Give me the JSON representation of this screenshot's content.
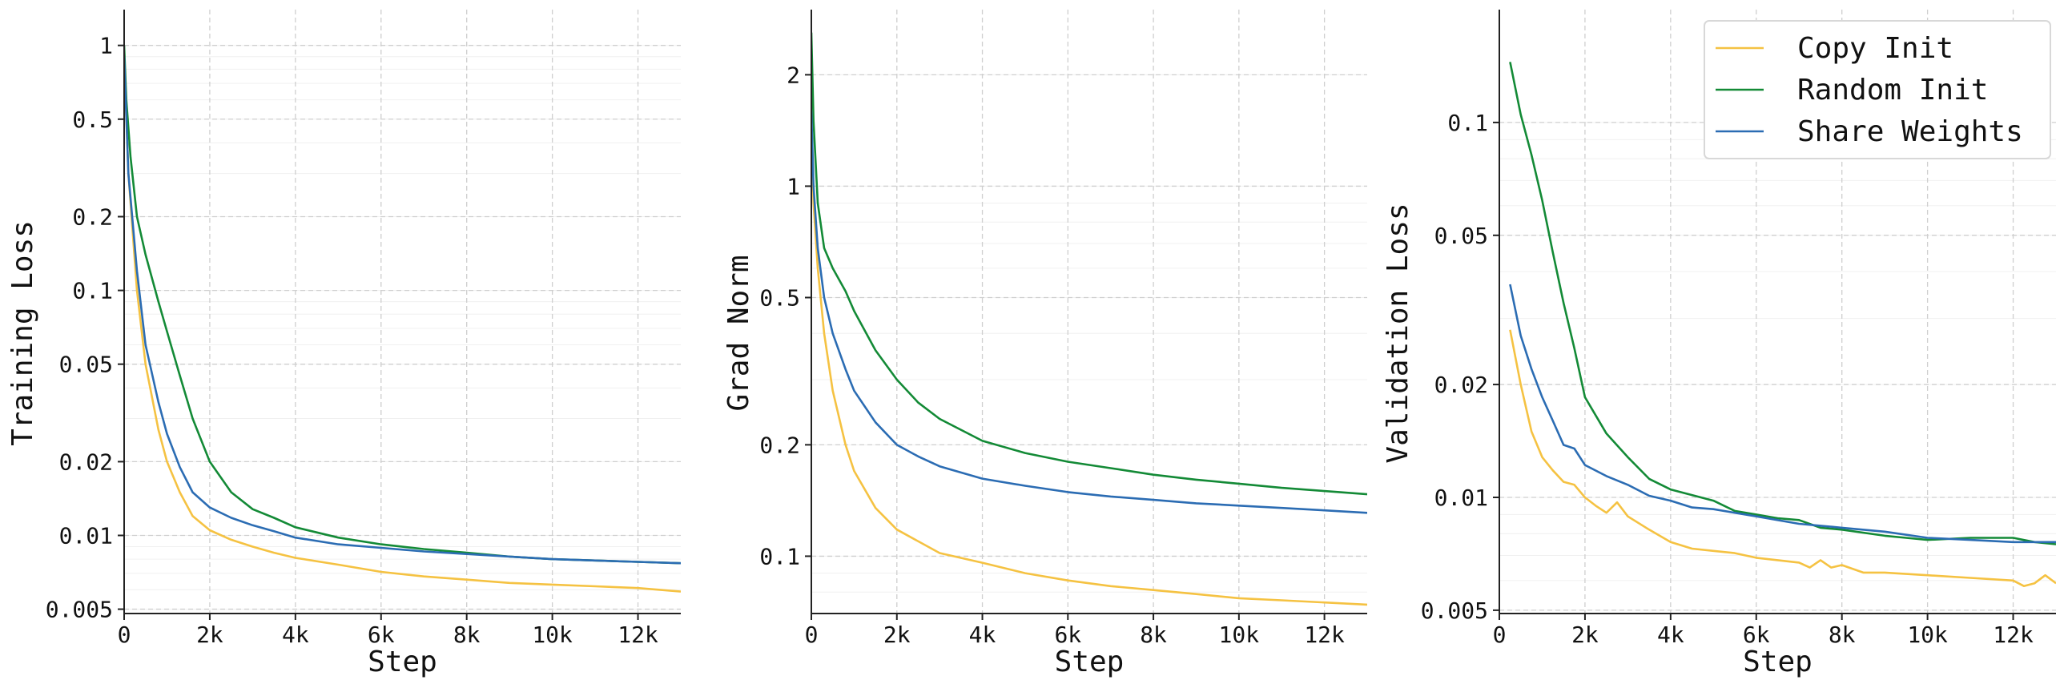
{
  "chart_data": [
    {
      "type": "line",
      "xlabel": "Step",
      "ylabel": "Training Loss",
      "yscale": "log",
      "xlim": [
        0,
        13000
      ],
      "ylim": [
        0.0048,
        1.4
      ],
      "x_ticks": [
        0,
        2000,
        4000,
        6000,
        8000,
        10000,
        12000
      ],
      "x_tick_labels": [
        "0",
        "2k",
        "4k",
        "6k",
        "8k",
        "10k",
        "12k"
      ],
      "y_ticks": [
        0.005,
        0.01,
        0.02,
        0.05,
        0.1,
        0.2,
        0.5,
        1
      ],
      "y_tick_labels": [
        "0.005",
        "0.01",
        "0.02",
        "0.05",
        "0.1",
        "0.2",
        "0.5",
        "1"
      ],
      "grid": true,
      "series": [
        {
          "name": "Copy Init",
          "color": "#f5c242",
          "x": [
            0,
            100,
            300,
            500,
            800,
            1000,
            1300,
            1600,
            2000,
            2500,
            3000,
            3500,
            4000,
            5000,
            6000,
            7000,
            8000,
            9000,
            10000,
            11000,
            12000,
            13000
          ],
          "y": [
            0.9,
            0.3,
            0.1,
            0.05,
            0.027,
            0.02,
            0.015,
            0.012,
            0.0105,
            0.0096,
            0.009,
            0.0085,
            0.0081,
            0.0076,
            0.0071,
            0.0068,
            0.0066,
            0.0064,
            0.0063,
            0.0062,
            0.0061,
            0.0059
          ]
        },
        {
          "name": "Random Init",
          "color": "#138a36",
          "x": [
            0,
            50,
            150,
            300,
            500,
            800,
            1000,
            1300,
            1600,
            2000,
            2500,
            3000,
            3500,
            4000,
            5000,
            6000,
            7000,
            8000,
            9000,
            10000,
            11000,
            12000,
            13000
          ],
          "y": [
            1.0,
            0.6,
            0.35,
            0.2,
            0.14,
            0.09,
            0.068,
            0.045,
            0.03,
            0.02,
            0.015,
            0.0128,
            0.0118,
            0.0108,
            0.0098,
            0.0092,
            0.0088,
            0.0085,
            0.0082,
            0.008,
            0.0079,
            0.0078,
            0.0077
          ]
        },
        {
          "name": "Share Weights",
          "color": "#2b6cb3",
          "x": [
            0,
            100,
            300,
            500,
            800,
            1000,
            1300,
            1600,
            2000,
            2500,
            3000,
            3500,
            4000,
            5000,
            6000,
            7000,
            8000,
            9000,
            10000,
            11000,
            12000,
            13000
          ],
          "y": [
            0.9,
            0.3,
            0.12,
            0.06,
            0.035,
            0.026,
            0.019,
            0.015,
            0.013,
            0.0118,
            0.011,
            0.0104,
            0.0098,
            0.0092,
            0.0089,
            0.0086,
            0.0084,
            0.0082,
            0.008,
            0.0079,
            0.0078,
            0.0077
          ]
        }
      ]
    },
    {
      "type": "line",
      "xlabel": "Step",
      "ylabel": "Grad Norm",
      "yscale": "log",
      "xlim": [
        0,
        13000
      ],
      "ylim": [
        0.07,
        3.0
      ],
      "x_ticks": [
        0,
        2000,
        4000,
        6000,
        8000,
        10000,
        12000
      ],
      "x_tick_labels": [
        "0",
        "2k",
        "4k",
        "6k",
        "8k",
        "10k",
        "12k"
      ],
      "y_ticks": [
        0.1,
        0.2,
        0.5,
        1,
        2
      ],
      "y_tick_labels": [
        "0.1",
        "0.2",
        "0.5",
        "1",
        "2"
      ],
      "grid": true,
      "series": [
        {
          "name": "Copy Init",
          "color": "#f5c242",
          "x": [
            0,
            50,
            150,
            300,
            500,
            800,
            1000,
            1500,
            2000,
            3000,
            4000,
            5000,
            6000,
            7000,
            8000,
            9000,
            10000,
            11000,
            12000,
            13000
          ],
          "y": [
            1.6,
            0.9,
            0.6,
            0.4,
            0.28,
            0.2,
            0.17,
            0.135,
            0.118,
            0.102,
            0.096,
            0.09,
            0.086,
            0.083,
            0.081,
            0.079,
            0.077,
            0.076,
            0.075,
            0.074
          ]
        },
        {
          "name": "Random Init",
          "color": "#138a36",
          "x": [
            0,
            50,
            150,
            300,
            500,
            800,
            1000,
            1500,
            2000,
            2500,
            3000,
            4000,
            5000,
            6000,
            7000,
            8000,
            9000,
            10000,
            11000,
            12000,
            13000
          ],
          "y": [
            2.6,
            1.5,
            0.9,
            0.68,
            0.6,
            0.52,
            0.46,
            0.36,
            0.3,
            0.26,
            0.235,
            0.205,
            0.19,
            0.18,
            0.173,
            0.166,
            0.161,
            0.157,
            0.153,
            0.15,
            0.147
          ]
        },
        {
          "name": "Share Weights",
          "color": "#2b6cb3",
          "x": [
            0,
            50,
            150,
            300,
            500,
            800,
            1000,
            1500,
            2000,
            2500,
            3000,
            4000,
            5000,
            6000,
            7000,
            8000,
            9000,
            10000,
            11000,
            12000,
            13000
          ],
          "y": [
            1.6,
            1.0,
            0.68,
            0.5,
            0.4,
            0.32,
            0.28,
            0.23,
            0.2,
            0.186,
            0.175,
            0.162,
            0.155,
            0.149,
            0.145,
            0.142,
            0.139,
            0.137,
            0.135,
            0.133,
            0.131
          ]
        }
      ]
    },
    {
      "type": "line",
      "xlabel": "Step",
      "ylabel": "Validation Loss",
      "yscale": "log",
      "xlim": [
        0,
        13000
      ],
      "ylim": [
        0.0049,
        0.2
      ],
      "x_ticks": [
        0,
        2000,
        4000,
        6000,
        8000,
        10000,
        12000
      ],
      "x_tick_labels": [
        "0",
        "2k",
        "4k",
        "6k",
        "8k",
        "10k",
        "12k"
      ],
      "y_ticks": [
        0.005,
        0.01,
        0.02,
        0.05,
        0.1
      ],
      "y_tick_labels": [
        "0.005",
        "0.01",
        "0.02",
        "0.05",
        "0.1"
      ],
      "grid": true,
      "legend": {
        "location": "top-right",
        "entries": [
          "Copy Init",
          "Random Init",
          "Share Weights"
        ]
      },
      "series": [
        {
          "name": "Copy Init",
          "color": "#f5c242",
          "x": [
            250,
            500,
            750,
            1000,
            1250,
            1500,
            1750,
            2000,
            2250,
            2500,
            2750,
            3000,
            3500,
            4000,
            4500,
            5000,
            5500,
            6000,
            6500,
            7000,
            7250,
            7500,
            7750,
            8000,
            8500,
            9000,
            10000,
            11000,
            12000,
            12250,
            12500,
            12750,
            13000
          ],
          "y": [
            0.028,
            0.02,
            0.015,
            0.0128,
            0.0118,
            0.011,
            0.0108,
            0.01,
            0.0095,
            0.0091,
            0.0097,
            0.0089,
            0.0082,
            0.0076,
            0.0073,
            0.0072,
            0.0071,
            0.0069,
            0.0068,
            0.0067,
            0.0065,
            0.0068,
            0.0065,
            0.0066,
            0.0063,
            0.0063,
            0.0062,
            0.0061,
            0.006,
            0.0058,
            0.0059,
            0.0062,
            0.0059
          ]
        },
        {
          "name": "Random Init",
          "color": "#138a36",
          "x": [
            250,
            500,
            750,
            1000,
            1250,
            1500,
            1750,
            2000,
            2500,
            3000,
            3500,
            4000,
            5000,
            5500,
            6000,
            6500,
            7000,
            7500,
            8000,
            9000,
            9500,
            10000,
            11000,
            12000,
            12500,
            13000
          ],
          "y": [
            0.145,
            0.105,
            0.082,
            0.062,
            0.045,
            0.033,
            0.025,
            0.0185,
            0.0148,
            0.0128,
            0.0112,
            0.0105,
            0.0098,
            0.0092,
            0.009,
            0.0088,
            0.0087,
            0.0083,
            0.0082,
            0.0079,
            0.0078,
            0.0077,
            0.0078,
            0.0078,
            0.0076,
            0.0075
          ]
        },
        {
          "name": "Share Weights",
          "color": "#2b6cb3",
          "x": [
            250,
            500,
            750,
            1000,
            1250,
            1500,
            1750,
            2000,
            2500,
            3000,
            3500,
            4000,
            4500,
            5000,
            6000,
            7000,
            7500,
            8000,
            9000,
            10000,
            11000,
            12000,
            13000
          ],
          "y": [
            0.037,
            0.027,
            0.022,
            0.0185,
            0.016,
            0.0138,
            0.0135,
            0.0122,
            0.0114,
            0.0108,
            0.0101,
            0.0098,
            0.0094,
            0.0093,
            0.0089,
            0.0085,
            0.0084,
            0.0083,
            0.0081,
            0.0078,
            0.0077,
            0.0076,
            0.0076
          ]
        }
      ]
    }
  ]
}
